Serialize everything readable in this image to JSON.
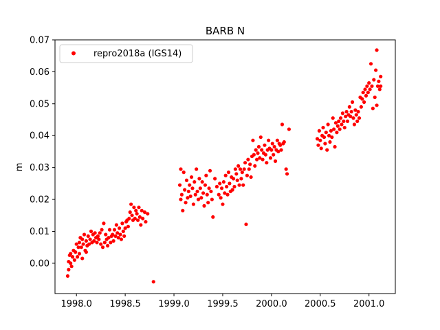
{
  "chart_data": {
    "type": "scatter",
    "title": "BARB N",
    "xlabel": "",
    "ylabel": "m",
    "xlim": [
      1997.78,
      2001.27
    ],
    "ylim": [
      -0.0095,
      0.07
    ],
    "x_ticks": [
      1998.0,
      1998.5,
      1999.0,
      1999.5,
      2000.0,
      2000.5,
      2001.0
    ],
    "x_tick_labels": [
      "1998.0",
      "1998.5",
      "1999.0",
      "1999.5",
      "2000.0",
      "2000.5",
      "2001.0"
    ],
    "y_ticks": [
      0.0,
      0.01,
      0.02,
      0.03,
      0.04,
      0.05,
      0.06,
      0.07
    ],
    "y_tick_labels": [
      "0.00",
      "0.01",
      "0.02",
      "0.03",
      "0.04",
      "0.05",
      "0.06",
      "0.07"
    ],
    "grid": false,
    "legend_position": "top-left",
    "series": [
      {
        "name": "repro2018a (IGS14)",
        "color": "#ff0000",
        "marker": "circle",
        "points": [
          [
            1997.91,
            -0.004
          ],
          [
            1997.92,
            -0.002
          ],
          [
            1997.92,
            0.0005
          ],
          [
            1997.93,
            0.0025
          ],
          [
            1997.94,
            0.0
          ],
          [
            1997.94,
            0.003
          ],
          [
            1997.95,
            -0.001
          ],
          [
            1997.96,
            0.002
          ],
          [
            1997.97,
            0.004
          ],
          [
            1997.98,
            0.001
          ],
          [
            1997.99,
            0.0035
          ],
          [
            1998.0,
            0.006
          ],
          [
            1998.01,
            0.002
          ],
          [
            1998.02,
            0.005
          ],
          [
            1998.03,
            0.0065
          ],
          [
            1998.03,
            0.003
          ],
          [
            1998.04,
            0.008
          ],
          [
            1998.05,
            0.005
          ],
          [
            1998.06,
            0.0075
          ],
          [
            1998.06,
            0.0015
          ],
          [
            1998.07,
            0.006
          ],
          [
            1998.08,
            0.009
          ],
          [
            1998.09,
            0.004
          ],
          [
            1998.1,
            0.007
          ],
          [
            1998.1,
            0.0035
          ],
          [
            1998.11,
            0.0055
          ],
          [
            1998.12,
            0.0085
          ],
          [
            1998.13,
            0.006
          ],
          [
            1998.14,
            0.0075
          ],
          [
            1998.15,
            0.01
          ],
          [
            1998.16,
            0.0065
          ],
          [
            1998.17,
            0.009
          ],
          [
            1998.18,
            0.007
          ],
          [
            1998.19,
            0.0095
          ],
          [
            1998.2,
            0.008
          ],
          [
            1998.21,
            0.0065
          ],
          [
            1998.22,
            0.0085
          ],
          [
            1998.23,
            0.0075
          ],
          [
            1998.24,
            0.0095
          ],
          [
            1998.25,
            0.006
          ],
          [
            1998.26,
            0.0105
          ],
          [
            1998.27,
            0.005
          ],
          [
            1998.28,
            0.0125
          ],
          [
            1998.29,
            0.0065
          ],
          [
            1998.3,
            0.009
          ],
          [
            1998.31,
            0.0075
          ],
          [
            1998.32,
            0.0055
          ],
          [
            1998.33,
            0.008
          ],
          [
            1998.34,
            0.0105
          ],
          [
            1998.35,
            0.0065
          ],
          [
            1998.36,
            0.0085
          ],
          [
            1998.37,
            0.009
          ],
          [
            1998.38,
            0.007
          ],
          [
            1998.39,
            0.0105
          ],
          [
            1998.4,
            0.0085
          ],
          [
            1998.41,
            0.012
          ],
          [
            1998.42,
            0.0095
          ],
          [
            1998.43,
            0.008
          ],
          [
            1998.44,
            0.011
          ],
          [
            1998.45,
            0.009
          ],
          [
            1998.46,
            0.0075
          ],
          [
            1998.47,
            0.0125
          ],
          [
            1998.48,
            0.01
          ],
          [
            1998.49,
            0.0085
          ],
          [
            1998.5,
            0.011
          ],
          [
            1998.51,
            0.013
          ],
          [
            1998.52,
            0.0135
          ],
          [
            1998.53,
            0.0115
          ],
          [
            1998.54,
            0.014
          ],
          [
            1998.55,
            0.016
          ],
          [
            1998.56,
            0.0185
          ],
          [
            1998.57,
            0.015
          ],
          [
            1998.58,
            0.0135
          ],
          [
            1998.59,
            0.0175
          ],
          [
            1998.6,
            0.014
          ],
          [
            1998.61,
            0.0165
          ],
          [
            1998.62,
            0.0155
          ],
          [
            1998.63,
            0.0135
          ],
          [
            1998.64,
            0.0175
          ],
          [
            1998.65,
            0.0145
          ],
          [
            1998.66,
            0.012
          ],
          [
            1998.67,
            0.0165
          ],
          [
            1998.68,
            0.014
          ],
          [
            1998.7,
            0.016
          ],
          [
            1998.71,
            0.013
          ],
          [
            1998.73,
            0.0155
          ],
          [
            1998.79,
            -0.0058
          ],
          [
            1999.06,
            0.0245
          ],
          [
            1999.07,
            0.0295
          ],
          [
            1999.07,
            0.02
          ],
          [
            1999.08,
            0.0215
          ],
          [
            1999.09,
            0.0165
          ],
          [
            1999.1,
            0.0285
          ],
          [
            1999.11,
            0.023
          ],
          [
            1999.12,
            0.019
          ],
          [
            1999.13,
            0.026
          ],
          [
            1999.14,
            0.0205
          ],
          [
            1999.15,
            0.0225
          ],
          [
            1999.16,
            0.0245
          ],
          [
            1999.17,
            0.021
          ],
          [
            1999.18,
            0.027
          ],
          [
            1999.19,
            0.0235
          ],
          [
            1999.2,
            0.0185
          ],
          [
            1999.21,
            0.0255
          ],
          [
            1999.22,
            0.0215
          ],
          [
            1999.23,
            0.0295
          ],
          [
            1999.24,
            0.0225
          ],
          [
            1999.25,
            0.02
          ],
          [
            1999.26,
            0.0265
          ],
          [
            1999.27,
            0.0235
          ],
          [
            1999.28,
            0.0205
          ],
          [
            1999.29,
            0.0255
          ],
          [
            1999.3,
            0.022
          ],
          [
            1999.31,
            0.018
          ],
          [
            1999.32,
            0.0245
          ],
          [
            1999.33,
            0.0275
          ],
          [
            1999.34,
            0.0215
          ],
          [
            1999.35,
            0.019
          ],
          [
            1999.36,
            0.0235
          ],
          [
            1999.37,
            0.029
          ],
          [
            1999.38,
            0.0225
          ],
          [
            1999.39,
            0.02
          ],
          [
            1999.4,
            0.0145
          ],
          [
            1999.42,
            0.0265
          ],
          [
            1999.44,
            0.024
          ],
          [
            1999.46,
            0.0215
          ],
          [
            1999.47,
            0.025
          ],
          [
            1999.48,
            0.0205
          ],
          [
            1999.49,
            0.0235
          ],
          [
            1999.5,
            0.0185
          ],
          [
            1999.51,
            0.0255
          ],
          [
            1999.52,
            0.022
          ],
          [
            1999.53,
            0.0275
          ],
          [
            1999.54,
            0.024
          ],
          [
            1999.55,
            0.0215
          ],
          [
            1999.56,
            0.0285
          ],
          [
            1999.57,
            0.025
          ],
          [
            1999.58,
            0.0225
          ],
          [
            1999.59,
            0.027
          ],
          [
            1999.6,
            0.023
          ],
          [
            1999.61,
            0.0265
          ],
          [
            1999.62,
            0.024
          ],
          [
            1999.63,
            0.0295
          ],
          [
            1999.64,
            0.028
          ],
          [
            1999.65,
            0.026
          ],
          [
            1999.66,
            0.0305
          ],
          [
            1999.67,
            0.0245
          ],
          [
            1999.68,
            0.0295
          ],
          [
            1999.69,
            0.0265
          ],
          [
            1999.7,
            0.0285
          ],
          [
            1999.71,
            0.0245
          ],
          [
            1999.72,
            0.0295
          ],
          [
            1999.73,
            0.0315
          ],
          [
            1999.74,
            0.0122
          ],
          [
            1999.75,
            0.0275
          ],
          [
            1999.76,
            0.0325
          ],
          [
            1999.77,
            0.0295
          ],
          [
            1999.78,
            0.031
          ],
          [
            1999.79,
            0.027
          ],
          [
            1999.8,
            0.0335
          ],
          [
            1999.81,
            0.0385
          ],
          [
            1999.82,
            0.034
          ],
          [
            1999.83,
            0.0305
          ],
          [
            1999.84,
            0.0355
          ],
          [
            1999.85,
            0.0325
          ],
          [
            1999.86,
            0.0345
          ],
          [
            1999.87,
            0.0365
          ],
          [
            1999.88,
            0.033
          ],
          [
            1999.89,
            0.0395
          ],
          [
            1999.9,
            0.0355
          ],
          [
            1999.91,
            0.0325
          ],
          [
            1999.92,
            0.0345
          ],
          [
            1999.93,
            0.037
          ],
          [
            1999.94,
            0.034
          ],
          [
            1999.95,
            0.0315
          ],
          [
            1999.96,
            0.0355
          ],
          [
            1999.97,
            0.0385
          ],
          [
            1999.98,
            0.036
          ],
          [
            1999.99,
            0.033
          ],
          [
            2000.0,
            0.0355
          ],
          [
            2000.01,
            0.0375
          ],
          [
            2000.02,
            0.034
          ],
          [
            2000.03,
            0.0365
          ],
          [
            2000.04,
            0.032
          ],
          [
            2000.05,
            0.0355
          ],
          [
            2000.06,
            0.0385
          ],
          [
            2000.07,
            0.035
          ],
          [
            2000.08,
            0.0375
          ],
          [
            2000.09,
            0.037
          ],
          [
            2000.1,
            0.0355
          ],
          [
            2000.11,
            0.0435
          ],
          [
            2000.12,
            0.0375
          ],
          [
            2000.13,
            0.038
          ],
          [
            2000.15,
            0.0295
          ],
          [
            2000.16,
            0.028
          ],
          [
            2000.18,
            0.042
          ],
          [
            2000.47,
            0.039
          ],
          [
            2000.48,
            0.037
          ],
          [
            2000.49,
            0.0415
          ],
          [
            2000.5,
            0.0385
          ],
          [
            2000.51,
            0.036
          ],
          [
            2000.52,
            0.04
          ],
          [
            2000.53,
            0.0425
          ],
          [
            2000.54,
            0.0395
          ],
          [
            2000.55,
            0.0375
          ],
          [
            2000.56,
            0.041
          ],
          [
            2000.57,
            0.0355
          ],
          [
            2000.58,
            0.0435
          ],
          [
            2000.59,
            0.04
          ],
          [
            2000.6,
            0.038
          ],
          [
            2000.61,
            0.0415
          ],
          [
            2000.62,
            0.0395
          ],
          [
            2000.63,
            0.0455
          ],
          [
            2000.64,
            0.042
          ],
          [
            2000.65,
            0.0365
          ],
          [
            2000.66,
            0.044
          ],
          [
            2000.67,
            0.041
          ],
          [
            2000.68,
            0.043
          ],
          [
            2000.69,
            0.0445
          ],
          [
            2000.7,
            0.042
          ],
          [
            2000.71,
            0.0455
          ],
          [
            2000.72,
            0.0435
          ],
          [
            2000.73,
            0.047
          ],
          [
            2000.74,
            0.0445
          ],
          [
            2000.75,
            0.0425
          ],
          [
            2000.76,
            0.046
          ],
          [
            2000.77,
            0.0475
          ],
          [
            2000.78,
            0.0445
          ],
          [
            2000.79,
            0.0465
          ],
          [
            2000.8,
            0.049
          ],
          [
            2000.81,
            0.046
          ],
          [
            2000.82,
            0.0475
          ],
          [
            2000.83,
            0.0505
          ],
          [
            2000.84,
            0.0455
          ],
          [
            2000.85,
            0.0435
          ],
          [
            2000.86,
            0.048
          ],
          [
            2000.87,
            0.0465
          ],
          [
            2000.88,
            0.0445
          ],
          [
            2000.89,
            0.0475
          ],
          [
            2000.9,
            0.0455
          ],
          [
            2000.91,
            0.052
          ],
          [
            2000.92,
            0.049
          ],
          [
            2000.93,
            0.0515
          ],
          [
            2000.94,
            0.0535
          ],
          [
            2000.95,
            0.0505
          ],
          [
            2000.96,
            0.0545
          ],
          [
            2000.97,
            0.0525
          ],
          [
            2000.98,
            0.0555
          ],
          [
            2000.99,
            0.0535
          ],
          [
            2001.0,
            0.0565
          ],
          [
            2001.01,
            0.0545
          ],
          [
            2001.02,
            0.0625
          ],
          [
            2001.03,
            0.0555
          ],
          [
            2001.04,
            0.0485
          ],
          [
            2001.05,
            0.0575
          ],
          [
            2001.06,
            0.052
          ],
          [
            2001.07,
            0.0605
          ],
          [
            2001.08,
            0.0495
          ],
          [
            2001.08,
            0.0668
          ],
          [
            2001.09,
            0.0555
          ],
          [
            2001.1,
            0.057
          ],
          [
            2001.11,
            0.0545
          ],
          [
            2001.12,
            0.0585
          ],
          [
            2001.12,
            0.0555
          ]
        ]
      }
    ]
  }
}
